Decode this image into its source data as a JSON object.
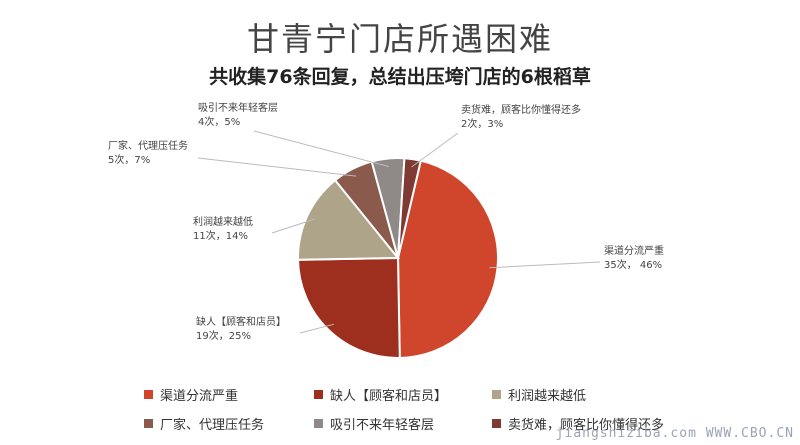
{
  "chart_data": {
    "type": "pie",
    "title": "甘青宁门店所遇困难",
    "subtitle": "共收集76条回复，总结出压垮门店的6根稻草",
    "slices": [
      {
        "label": "渠道分流严重",
        "count": 35,
        "percent": 46,
        "data_label": "35次， 46%",
        "color": "#d0462c"
      },
      {
        "label": "缺人【顾客和店员】",
        "count": 19,
        "percent": 25,
        "data_label": "19次，25%",
        "color": "#9e2f1e"
      },
      {
        "label": "利润越来越低",
        "count": 11,
        "percent": 14,
        "data_label": "11次，14%",
        "color": "#aea489"
      },
      {
        "label": "厂家、代理压任务",
        "count": 5,
        "percent": 7,
        "data_label": "5次，7%",
        "color": "#8a5a4c"
      },
      {
        "label": "吸引不来年轻客层",
        "count": 4,
        "percent": 5,
        "data_label": "4次，5%",
        "color": "#8f8a88"
      },
      {
        "label": "卖货难，顾客比你懂得还多",
        "count": 2,
        "percent": 3,
        "data_label": "2次，3%",
        "color": "#7e3a33"
      }
    ],
    "legend_position": "bottom"
  },
  "watermark": "jiangshiziba.com   WWW.CBO.CN"
}
